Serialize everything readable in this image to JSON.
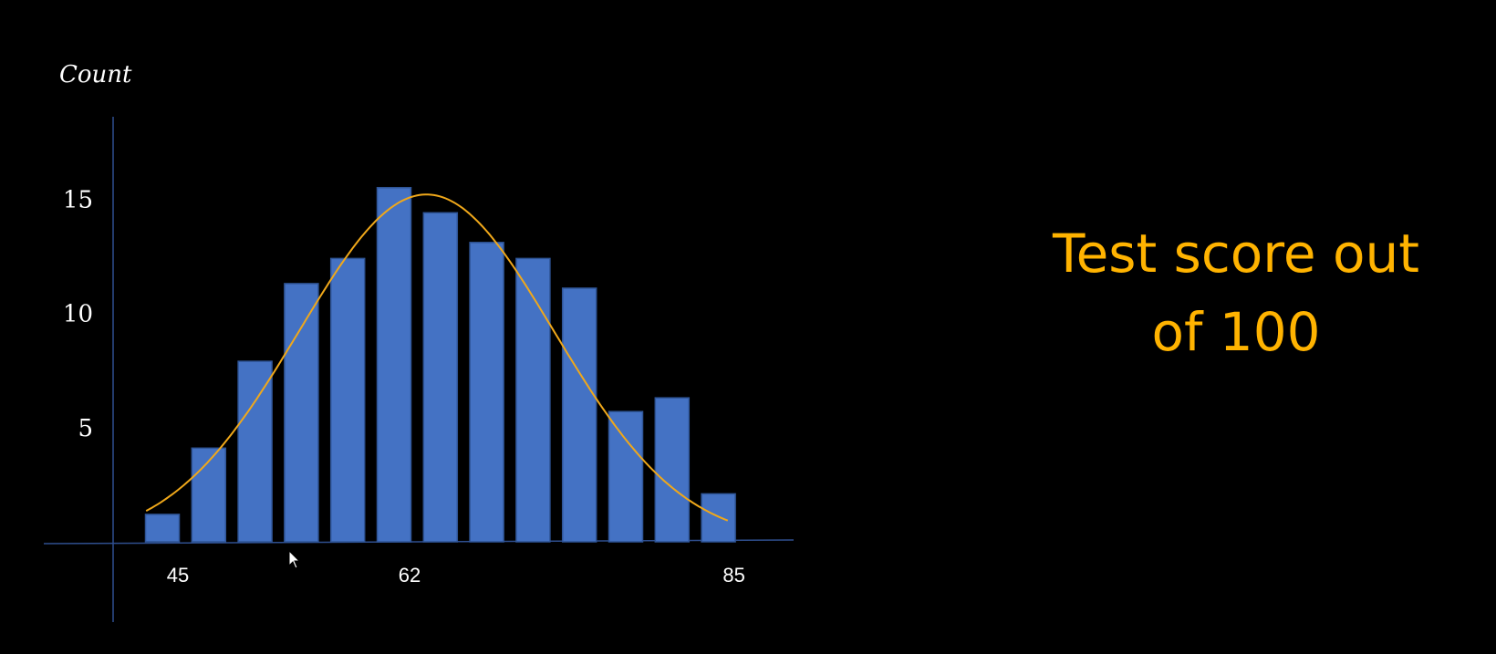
{
  "caption": {
    "line1": "Test score out",
    "line2": "of 100"
  },
  "colors": {
    "background": "#000000",
    "bar_fill": "#4472c4",
    "bar_stroke": "#2f5597",
    "axis": "#2f4f8f",
    "curve": "#f0a81a",
    "text": "#ffffff",
    "caption": "#ffb300"
  },
  "chart_data": {
    "type": "bar",
    "ylabel": "Count",
    "xlabel": "",
    "y_ticks": [
      5,
      10,
      15
    ],
    "x_ticks": [
      {
        "label": "45",
        "bar_index": 0
      },
      {
        "label": "62",
        "bar_index": 5
      },
      {
        "label": "85",
        "bar_index": 12
      }
    ],
    "values": [
      1.2,
      4.1,
      7.9,
      11.3,
      12.4,
      15.5,
      14.4,
      13.1,
      12.4,
      11.1,
      5.7,
      6.3,
      2.1
    ],
    "ylim": [
      0,
      18.5
    ],
    "curve": {
      "type": "normal-fit",
      "peak": 15.2,
      "peak_bar_position": 5.7,
      "sd_bars": 2.75,
      "start_bar_position": -0.35,
      "end_bar_position": 12.2
    },
    "grid": false,
    "legend": "none"
  }
}
